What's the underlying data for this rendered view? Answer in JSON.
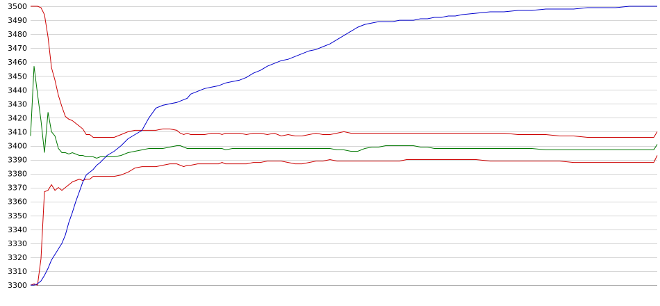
{
  "chart_data": {
    "type": "line",
    "title": "",
    "xlabel": "",
    "ylabel": "",
    "ylim": [
      3300,
      3500
    ],
    "y_ticks": [
      "3500",
      "3490",
      "3480",
      "3470",
      "3460",
      "3450",
      "3440",
      "3430",
      "3420",
      "3410",
      "3400",
      "3390",
      "3380",
      "3370",
      "3360",
      "3350",
      "3340",
      "3330",
      "3320",
      "3310",
      "3300"
    ],
    "grid": true,
    "legend": "none",
    "x": [
      0,
      5,
      10,
      15,
      20,
      25,
      30,
      35,
      40,
      45,
      50,
      55,
      60,
      65,
      70,
      75,
      80,
      85,
      90,
      95,
      100,
      110,
      120,
      130,
      140,
      150,
      160,
      170,
      180,
      190,
      200,
      210,
      215,
      220,
      225,
      230,
      240,
      250,
      260,
      270,
      275,
      280,
      290,
      300,
      310,
      320,
      330,
      340,
      350,
      360,
      370,
      380,
      390,
      400,
      410,
      420,
      430,
      440,
      450,
      460,
      470,
      480,
      490,
      500,
      510,
      520,
      530,
      540,
      550,
      560,
      570,
      580,
      590,
      600,
      610,
      620,
      640,
      660,
      680,
      700,
      720,
      740,
      760,
      780,
      800,
      820,
      840,
      860,
      880,
      895,
      900
    ],
    "series": [
      {
        "color": "#cc0000",
        "values": [
          3500,
          3500,
          3500,
          3499,
          3494,
          3478,
          3456,
          3447,
          3436,
          3428,
          3421,
          3419,
          3418,
          3416,
          3414,
          3412,
          3408,
          3408,
          3406,
          3406,
          3406,
          3406,
          3406,
          3408,
          3410,
          3411,
          3411,
          3411,
          3411,
          3412,
          3412,
          3411,
          3409,
          3408,
          3409,
          3408,
          3408,
          3408,
          3409,
          3409,
          3408,
          3409,
          3409,
          3409,
          3408,
          3409,
          3409,
          3408,
          3409,
          3407,
          3408,
          3407,
          3407,
          3408,
          3409,
          3408,
          3408,
          3409,
          3410,
          3409,
          3409,
          3409,
          3409,
          3409,
          3409,
          3409,
          3409,
          3409,
          3409,
          3409,
          3409,
          3409,
          3409,
          3409,
          3409,
          3409,
          3409,
          3409,
          3409,
          3408,
          3408,
          3408,
          3407,
          3407,
          3406,
          3406,
          3406,
          3406,
          3406,
          3406,
          3410
        ]
      },
      {
        "color": "#007700",
        "values": [
          3407,
          3457,
          3437,
          3418,
          3395,
          3424,
          3410,
          3407,
          3398,
          3395,
          3395,
          3394,
          3395,
          3394,
          3393,
          3393,
          3392,
          3392,
          3392,
          3391,
          3392,
          3392,
          3392,
          3393,
          3395,
          3396,
          3397,
          3398,
          3398,
          3398,
          3399,
          3400,
          3400,
          3399,
          3398,
          3398,
          3398,
          3398,
          3398,
          3398,
          3398,
          3397,
          3398,
          3398,
          3398,
          3398,
          3398,
          3398,
          3398,
          3398,
          3398,
          3398,
          3398,
          3398,
          3398,
          3398,
          3398,
          3397,
          3397,
          3396,
          3396,
          3398,
          3399,
          3399,
          3400,
          3400,
          3400,
          3400,
          3400,
          3399,
          3399,
          3398,
          3398,
          3398,
          3398,
          3398,
          3398,
          3398,
          3398,
          3398,
          3398,
          3397,
          3397,
          3397,
          3397,
          3397,
          3397,
          3397,
          3397,
          3397,
          3401
        ]
      },
      {
        "color": "#cc0000",
        "values": [
          3300,
          3301,
          3300,
          3319,
          3367,
          3368,
          3372,
          3368,
          3370,
          3368,
          3370,
          3372,
          3374,
          3375,
          3376,
          3375,
          3376,
          3376,
          3378,
          3378,
          3378,
          3378,
          3378,
          3379,
          3381,
          3384,
          3385,
          3385,
          3385,
          3386,
          3387,
          3387,
          3386,
          3385,
          3386,
          3386,
          3387,
          3387,
          3387,
          3387,
          3388,
          3387,
          3387,
          3387,
          3387,
          3388,
          3388,
          3389,
          3389,
          3389,
          3388,
          3387,
          3387,
          3388,
          3389,
          3389,
          3390,
          3389,
          3389,
          3389,
          3389,
          3389,
          3389,
          3389,
          3389,
          3389,
          3389,
          3390,
          3390,
          3390,
          3390,
          3390,
          3390,
          3390,
          3390,
          3390,
          3390,
          3389,
          3389,
          3389,
          3389,
          3389,
          3389,
          3388,
          3388,
          3388,
          3388,
          3388,
          3388,
          3388,
          3393
        ]
      },
      {
        "color": "#0000cc",
        "values": [
          3300,
          3300,
          3301,
          3303,
          3307,
          3312,
          3318,
          3322,
          3326,
          3330,
          3336,
          3345,
          3352,
          3360,
          3367,
          3374,
          3379,
          3381,
          3383,
          3386,
          3388,
          3393,
          3396,
          3400,
          3405,
          3408,
          3411,
          3420,
          3427,
          3429,
          3430,
          3431,
          3432,
          3433,
          3434,
          3437,
          3439,
          3441,
          3442,
          3443,
          3444,
          3445,
          3446,
          3447,
          3449,
          3452,
          3454,
          3457,
          3459,
          3461,
          3462,
          3464,
          3466,
          3468,
          3469,
          3471,
          3473,
          3476,
          3479,
          3482,
          3485,
          3487,
          3488,
          3489,
          3489,
          3489,
          3490,
          3490,
          3490,
          3491,
          3491,
          3492,
          3492,
          3493,
          3493,
          3494,
          3495,
          3496,
          3496,
          3497,
          3497,
          3498,
          3498,
          3498,
          3499,
          3499,
          3499,
          3500,
          3500,
          3500,
          3500
        ]
      }
    ]
  }
}
